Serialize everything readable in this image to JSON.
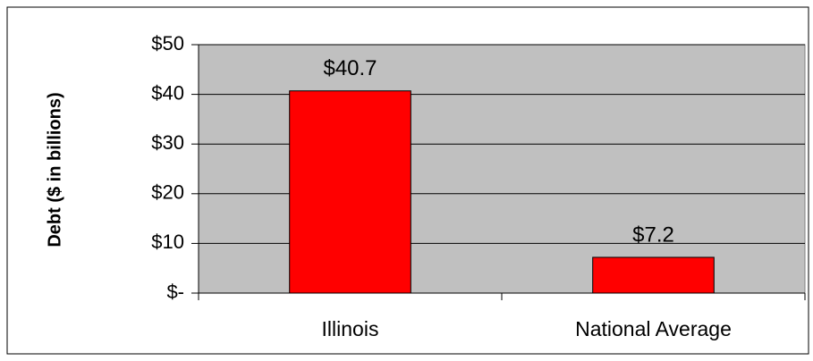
{
  "chart_data": {
    "type": "bar",
    "y_label": "Debt ($ in billions)",
    "categories": [
      "Illinois",
      "National Average"
    ],
    "values": [
      40.7,
      7.2
    ],
    "value_labels": [
      "$40.7",
      "$7.2"
    ],
    "color": "#ff0000",
    "ylim": [
      0,
      50
    ],
    "yticks": [
      {
        "value": 0,
        "label": "$-"
      },
      {
        "value": 10,
        "label": "$10"
      },
      {
        "value": 20,
        "label": "$20"
      },
      {
        "value": 30,
        "label": "$30"
      },
      {
        "value": 40,
        "label": "$40"
      },
      {
        "value": 50,
        "label": "$50"
      }
    ],
    "grid": true
  }
}
